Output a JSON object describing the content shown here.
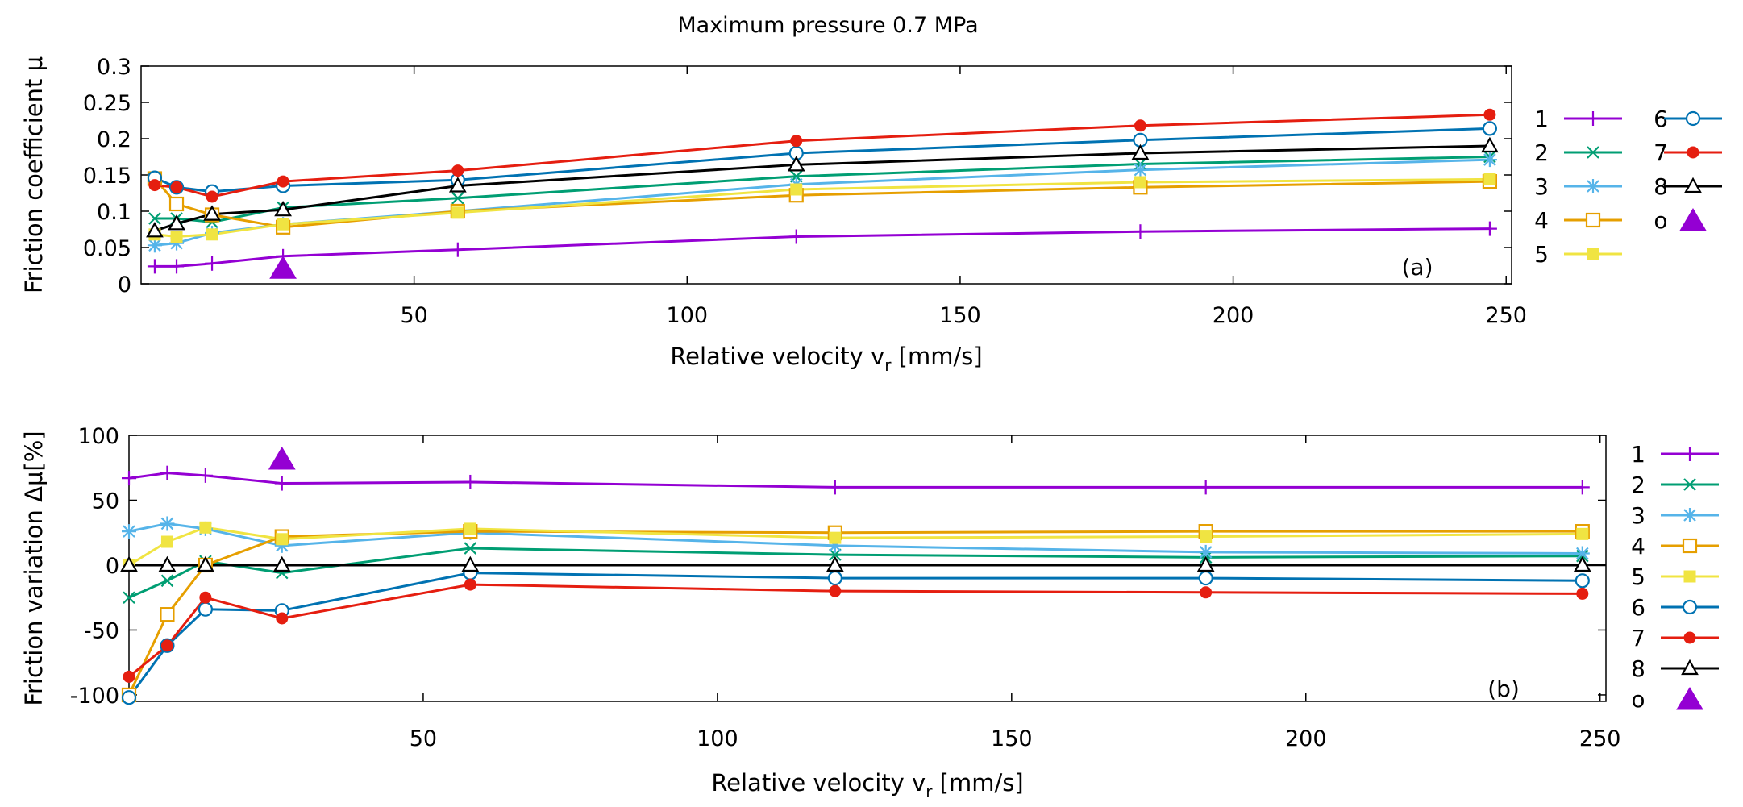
{
  "figure_title": "Maximum pressure 0.7 MPa",
  "colors": {
    "1": "#9400d3",
    "2": "#009e73",
    "3": "#56b4e9",
    "4": "#e69f00",
    "5": "#f0e442",
    "6": "#0072b2",
    "7": "#e51e10",
    "8": "#000000",
    "o": "#9400d3"
  },
  "chart_data": [
    {
      "type": "line",
      "title": "Maximum pressure 0.7 MPa",
      "panel_label": "(a)",
      "xlabel": "Relative velocity v",
      "xlabel_sub": "r",
      "xlabel_unit": " [mm/s]",
      "ylabel": "Friction coefficient  μ",
      "xlim": [
        0,
        251
      ],
      "ylim": [
        0,
        0.3
      ],
      "xticks": [
        50,
        100,
        150,
        200,
        250
      ],
      "yticks": [
        0,
        0.05,
        0.1,
        0.15,
        0.2,
        0.25,
        0.3
      ],
      "ytick_labels": [
        "0",
        "0.05",
        "0.1",
        "0.15",
        "0.2",
        "0.25",
        "0.3"
      ],
      "x": [
        2.5,
        6.5,
        13,
        26,
        58,
        120,
        183,
        247
      ],
      "series": [
        {
          "name": "1",
          "marker": "plus",
          "values": [
            0.024,
            0.024,
            0.028,
            0.038,
            0.047,
            0.065,
            0.072,
            0.076
          ]
        },
        {
          "name": "2",
          "marker": "cross",
          "values": [
            0.09,
            0.09,
            0.085,
            0.105,
            0.118,
            0.148,
            0.165,
            0.175
          ]
        },
        {
          "name": "3",
          "marker": "star",
          "values": [
            0.053,
            0.056,
            0.07,
            0.082,
            0.1,
            0.137,
            0.157,
            0.171
          ]
        },
        {
          "name": "4",
          "marker": "square-open",
          "values": [
            0.145,
            0.11,
            0.095,
            0.078,
            0.1,
            0.122,
            0.133,
            0.141
          ]
        },
        {
          "name": "5",
          "marker": "square-filled",
          "values": [
            0.068,
            0.065,
            0.068,
            0.082,
            0.098,
            0.13,
            0.14,
            0.144
          ]
        },
        {
          "name": "6",
          "marker": "circle-open",
          "values": [
            0.146,
            0.133,
            0.127,
            0.135,
            0.143,
            0.18,
            0.198,
            0.214
          ]
        },
        {
          "name": "7",
          "marker": "circle-filled",
          "values": [
            0.136,
            0.133,
            0.12,
            0.141,
            0.156,
            0.197,
            0.218,
            0.233
          ]
        },
        {
          "name": "8",
          "marker": "triangle-open",
          "values": [
            0.073,
            0.083,
            0.096,
            0.102,
            0.135,
            0.164,
            0.18,
            0.19
          ]
        }
      ],
      "marker_o": {
        "name": "o",
        "x": 26,
        "y": 0.022
      },
      "legend_position": "right"
    },
    {
      "type": "line",
      "panel_label": "(b)",
      "xlabel": "Relative velocity v",
      "xlabel_sub": "r",
      "xlabel_unit": " [mm/s]",
      "ylabel": "Friction variation Δμ[%]",
      "xlim": [
        0,
        251
      ],
      "ylim": [
        -105,
        100
      ],
      "xticks": [
        50,
        100,
        150,
        200,
        250
      ],
      "yticks": [
        -100,
        -50,
        0,
        50,
        100
      ],
      "ytick_labels": [
        "-100",
        "-50",
        "0",
        "50",
        "100"
      ],
      "x": [
        0,
        6.5,
        13,
        26,
        58,
        120,
        183,
        247
      ],
      "series": [
        {
          "name": "1",
          "marker": "plus",
          "values": [
            67,
            71,
            69,
            63,
            64,
            60,
            60,
            60
          ]
        },
        {
          "name": "2",
          "marker": "cross",
          "values": [
            -25,
            -12,
            3,
            -6,
            13,
            8,
            6,
            7
          ]
        },
        {
          "name": "3",
          "marker": "star",
          "values": [
            26,
            32,
            28,
            15,
            25,
            15,
            10,
            9
          ]
        },
        {
          "name": "4",
          "marker": "square-open",
          "values": [
            -100,
            -38,
            0,
            22,
            26,
            25,
            26,
            26
          ]
        },
        {
          "name": "5",
          "marker": "square-filled",
          "values": [
            0,
            18,
            29,
            20,
            28,
            21,
            22,
            24
          ]
        },
        {
          "name": "6",
          "marker": "circle-open",
          "values": [
            -102,
            -62,
            -34,
            -35,
            -6,
            -10,
            -10,
            -12
          ]
        },
        {
          "name": "7",
          "marker": "circle-filled",
          "values": [
            -86,
            -62,
            -25,
            -41,
            -15,
            -20,
            -21,
            -22
          ]
        },
        {
          "name": "8",
          "marker": "triangle-open",
          "values": [
            0,
            0,
            0,
            0,
            0,
            0,
            0,
            0
          ]
        }
      ],
      "marker_o": {
        "name": "o",
        "x": 26,
        "y": 82
      },
      "legend_position": "right"
    }
  ]
}
